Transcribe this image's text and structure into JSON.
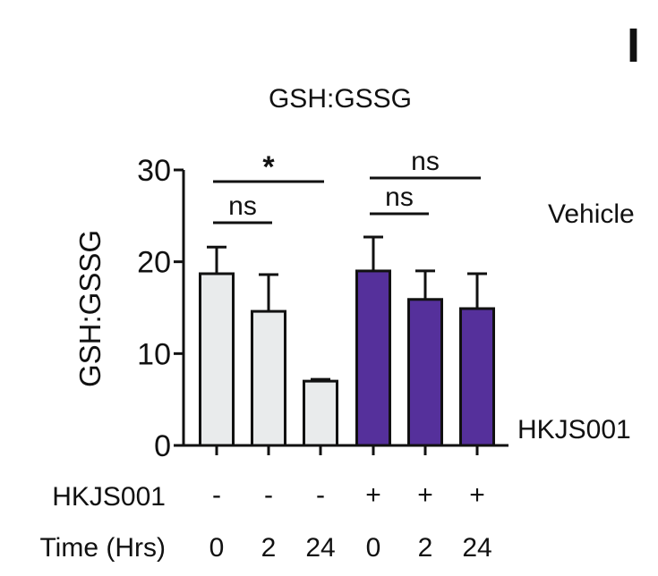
{
  "panel_letter": "I",
  "legend": {
    "vehicle_label": "Vehicle",
    "treated_label": "HKJS001"
  },
  "chart_data": {
    "type": "bar",
    "title": "GSH:GSSG",
    "ylabel": "GSH:GSSG",
    "xlabel": "",
    "ylim": [
      0,
      30
    ],
    "yticks": [
      0,
      10,
      20,
      30
    ],
    "tick_labels": [
      "0",
      "10",
      "20",
      "30"
    ],
    "categories": [
      "0",
      "2",
      "24",
      "0",
      "2",
      "24"
    ],
    "values": [
      18.7,
      14.6,
      7.0,
      19.0,
      15.9,
      14.9
    ],
    "errors": [
      2.9,
      4.0,
      0.2,
      3.7,
      3.1,
      3.8
    ],
    "groups": [
      "vehicle",
      "vehicle",
      "vehicle",
      "hkjs001",
      "hkjs001",
      "hkjs001"
    ],
    "colors": {
      "vehicle": "#e9ebec",
      "hkjs001": "#55309b",
      "stroke": "#111111"
    },
    "row_labels": {
      "treatment": "HKJS001",
      "time": "Time (Hrs)"
    },
    "treatment_signs": [
      "-",
      "-",
      "-",
      "+",
      "+",
      "+"
    ],
    "time_values": [
      "0",
      "2",
      "24",
      "0",
      "2",
      "24"
    ],
    "significance": [
      {
        "from": 0,
        "to": 2,
        "label": "*"
      },
      {
        "from": 0,
        "to": 1,
        "label": "ns"
      },
      {
        "from": 3,
        "to": 5,
        "label": "ns"
      },
      {
        "from": 3,
        "to": 4,
        "label": "ns"
      }
    ]
  }
}
